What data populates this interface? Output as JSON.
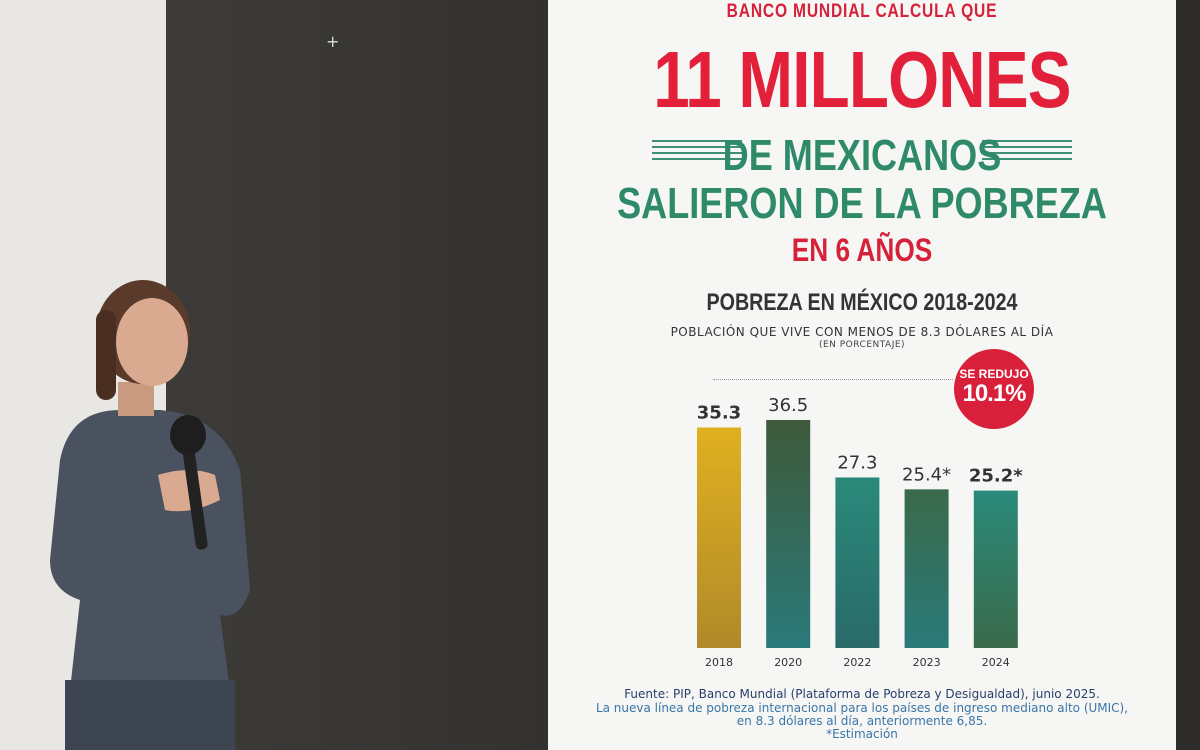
{
  "slide": {
    "kicker": "BANCO MUNDIAL CALCULA QUE",
    "headline": "11 MILLONES",
    "line2": "DE MEXICANOS",
    "line3": "SALIERON DE LA POBREZA",
    "line4": "EN 6 AÑOS",
    "badge_top": "SE REDUJO",
    "badge_value": "10.1%",
    "source": "Fuente: PIP, Banco Mundial (Plataforma de Pobreza y Desigualdad), junio 2025.",
    "note1": "La nueva línea de pobreza internacional para los países de ingreso mediano alto (UMIC),",
    "note2": "en 8.3 dólares al día, anteriormente 6,85.",
    "note3": "*Estimación"
  },
  "chart_data": {
    "type": "bar",
    "title": "POBREZA EN MÉXICO 2018-2024",
    "subtitle": "POBLACIÓN QUE VIVE CON MENOS DE 8.3 DÓLARES AL DÍA",
    "unit": "(EN PORCENTAJE)",
    "categories": [
      "2018",
      "2020",
      "2022",
      "2023",
      "2024"
    ],
    "values": [
      35.3,
      36.5,
      27.3,
      25.4,
      25.2
    ],
    "labels": [
      "35.3",
      "36.5",
      "27.3",
      "25.4*",
      "25.2*"
    ],
    "ylim": [
      0,
      36.5
    ],
    "grid": false,
    "colors": {
      "2018": [
        "#e0b020",
        "#b08a2a"
      ],
      "2020": [
        "#3e5a3a",
        "#2a7a7a"
      ],
      "2022": [
        "#2a8a7a",
        "#2a6a6a"
      ],
      "2023": [
        "#3a6a4a",
        "#2a7a7a"
      ],
      "2024": [
        "#2a8a7a",
        "#3a6a4a"
      ]
    }
  }
}
